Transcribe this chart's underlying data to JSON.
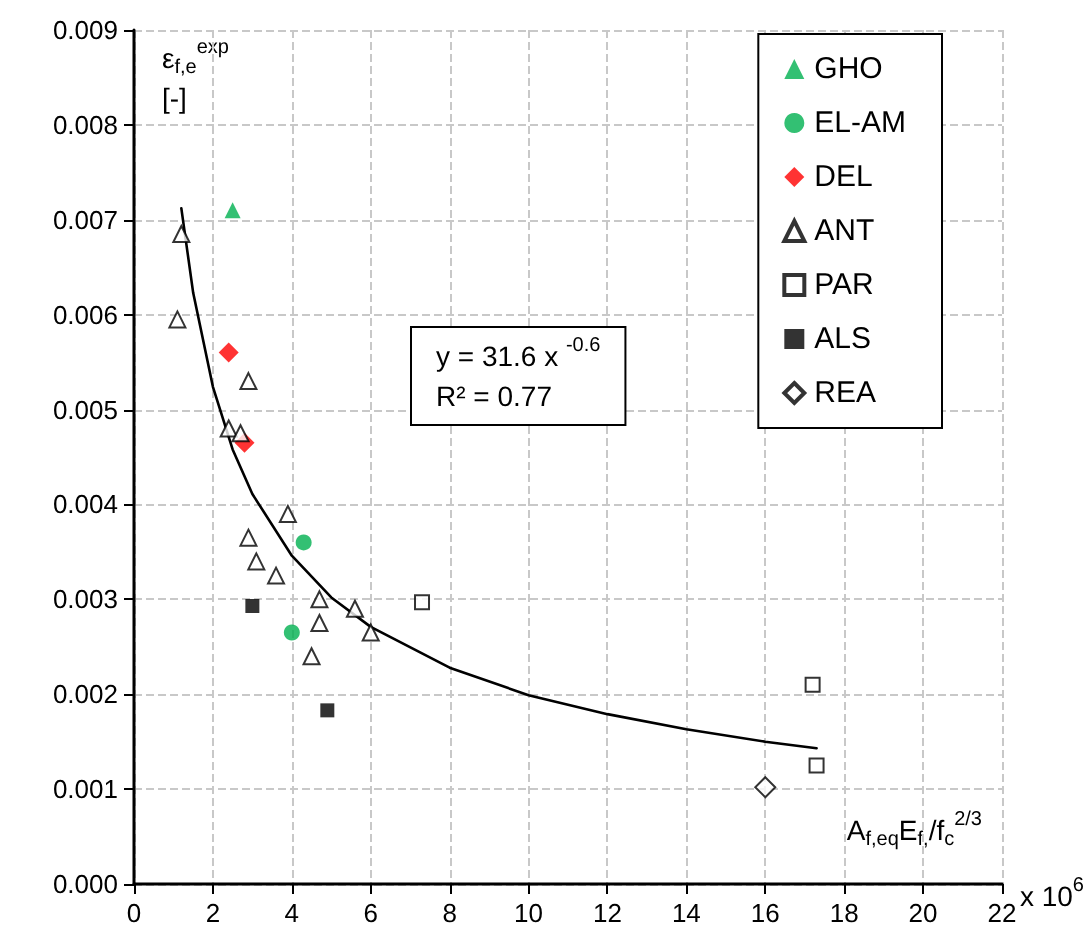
{
  "chart_data": {
    "type": "scatter",
    "xlabel": "A$_{f,eq}$E$_{f,}$/f$_{c}$$^{2/3}$",
    "ylabel": "ε$_{f,e}$$^{exp}$\n[-]",
    "annotations": [
      "y = 31.6 x $^{-0.6}$\nR² = 0.77",
      "x 10$^{6}$"
    ],
    "xlim": [
      0,
      22
    ],
    "xticks": [
      0,
      2,
      4,
      6,
      8,
      10,
      12,
      14,
      16,
      18,
      20,
      22
    ],
    "ylim": [
      0,
      0.009
    ],
    "yticks": [
      {
        "value": 0,
        "label": "0.000"
      },
      {
        "value": 0.001,
        "label": "0.001"
      },
      {
        "value": 0.002,
        "label": "0.002"
      },
      {
        "value": 0.003,
        "label": "0.003"
      },
      {
        "value": 0.004,
        "label": "0.004"
      },
      {
        "value": 0.005,
        "label": "0.005"
      },
      {
        "value": 0.006,
        "label": "0.006"
      },
      {
        "value": 0.007,
        "label": "0.007"
      },
      {
        "value": 0.008,
        "label": "0.008"
      },
      {
        "value": 0.009,
        "label": "0.009"
      }
    ],
    "grid": true,
    "legend": "top right",
    "series": [
      {
        "name": "GHO",
        "color": "#00b050",
        "marker": "triangle",
        "x": [
          2.5
        ],
        "values": [
          0.0071
        ]
      },
      {
        "name": "EL-AM",
        "color": "#00b050",
        "marker": "circle",
        "x": [
          4.3,
          4.0
        ],
        "values": [
          0.0036,
          0.00265
        ]
      },
      {
        "name": "DEL",
        "color": "#ff0000",
        "marker": "diamond",
        "x": [
          2.4,
          2.8
        ],
        "values": [
          0.0056,
          0.00465
        ]
      },
      {
        "name": "ANT",
        "color": "#000000",
        "marker": "triangle-open",
        "x": [
          1.2,
          1.1,
          2.9,
          2.4,
          2.7,
          3.9,
          2.9,
          3.1,
          3.6,
          4.7,
          5.6,
          4.7,
          4.5,
          6.0
        ],
        "values": [
          0.00685,
          0.00595,
          0.0053,
          0.0048,
          0.00475,
          0.0039,
          0.00365,
          0.0034,
          0.00325,
          0.003,
          0.0029,
          0.00275,
          0.0024,
          0.00265
        ]
      },
      {
        "name": "PAR",
        "color": "#000000",
        "marker": "square-open",
        "x": [
          7.3,
          17.2,
          17.3
        ],
        "values": [
          0.00297,
          0.0021,
          0.00125
        ]
      },
      {
        "name": "ALS",
        "color": "#000000",
        "marker": "square",
        "x": [
          3.0,
          4.9
        ],
        "values": [
          0.00293,
          0.00183
        ]
      },
      {
        "name": "REA",
        "color": "#000000",
        "marker": "diamond-open",
        "x": [
          16.0
        ],
        "values": [
          0.00102
        ]
      },
      {
        "type": "line",
        "color": "#000000",
        "marker": "none",
        "x": [
          1.2,
          1.5,
          2,
          2.5,
          3,
          4,
          5,
          6,
          8,
          10,
          12,
          14,
          16,
          17.3
        ],
        "values": [
          0.00712,
          0.00623,
          0.00524,
          0.00458,
          0.00411,
          0.00346,
          0.00302,
          0.00271,
          0.00228,
          0.00199,
          0.00179,
          0.00163,
          0.0015,
          0.00143
        ]
      }
    ]
  }
}
